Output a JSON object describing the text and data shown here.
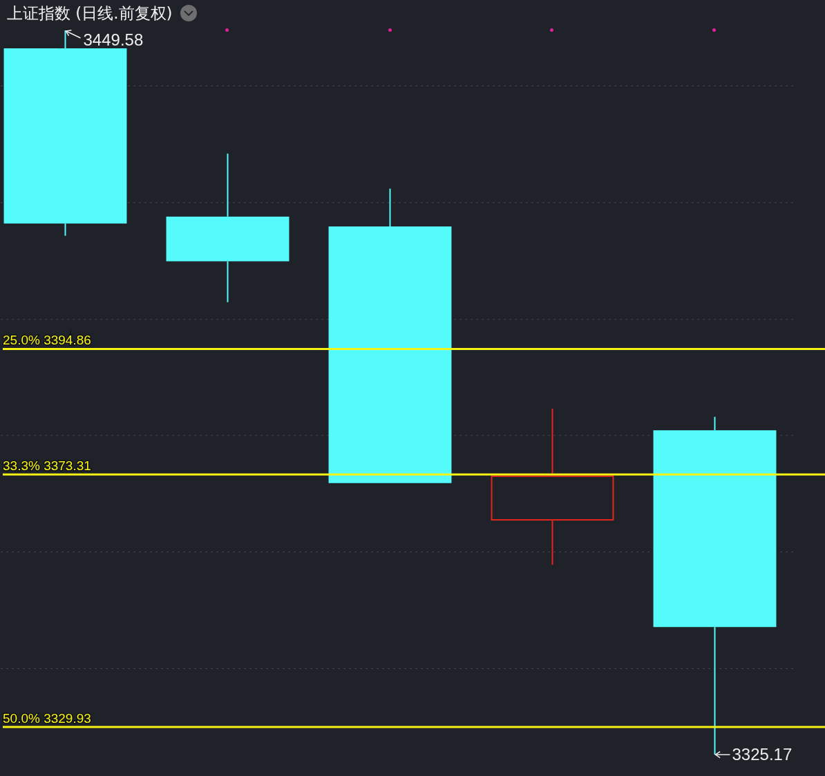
{
  "chart_data": {
    "type": "candlestick",
    "title": "上证指数 (日线.前复权)",
    "categories": [
      null,
      null,
      null,
      null,
      null
    ],
    "ohlc": [
      [
        3446.5,
        3449.58,
        3414.3,
        3416.4
      ],
      [
        3417.6,
        3428.4,
        3402.9,
        3409.9
      ],
      [
        3415.9,
        3422.4,
        3371.8,
        3371.8
      ],
      [
        3365.5,
        3384.6,
        3357.8,
        3373.0
      ],
      [
        3380.9,
        3383.2,
        3325.17,
        3347.1
      ]
    ],
    "colors": [
      "#55fafa",
      "#55fafa",
      "#55fafa",
      "#e2261e",
      "#55fafa"
    ],
    "ylim": [
      3321.5,
      3454.8
    ],
    "yticks": [
      {
        "value": 3340,
        "label": null
      },
      {
        "value": 3360,
        "label": null
      },
      {
        "value": 3380,
        "label": null
      },
      {
        "value": 3400,
        "label": null
      },
      {
        "value": 3420,
        "label": null
      },
      {
        "value": 3440,
        "label": null
      }
    ],
    "grid": "y",
    "tick_labels": false,
    "ref_lines": [
      {
        "axis": "y",
        "value": 3394.86,
        "label": "25.0% 3394.86",
        "color": "#f7f314"
      },
      {
        "axis": "y",
        "value": 3373.31,
        "label": "33.3% 3373.31",
        "color": "#f7f314"
      },
      {
        "axis": "y",
        "value": 3329.93,
        "label": "50.0% 3329.93",
        "color": "#f7f314"
      }
    ],
    "annotations": [
      "3449.58",
      "3325.17"
    ]
  }
}
